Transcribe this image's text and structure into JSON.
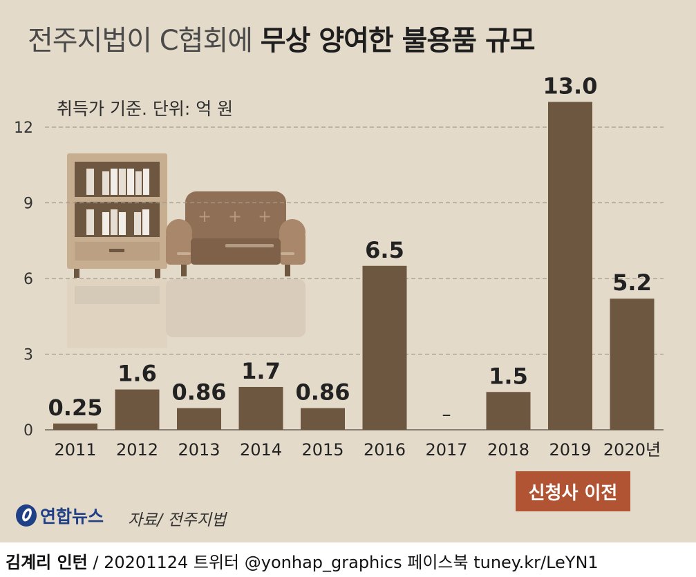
{
  "title_light": "전주지법이 C협회에",
  "title_bold": "무상 양여한 불용품 규모",
  "subtitle": "취득가 기준. 단위: 억 원",
  "badge": "신청사 이전",
  "logo_text": "연합뉴스",
  "source": "자료/ 전주지법",
  "footer": {
    "author": "김계리 인턴",
    "rest": " / 20201124  트위터 @yonhap_graphics  페이스북 tuney.kr/LeYN1"
  },
  "colors": {
    "background": "#e4dac9",
    "bar": "#6e5741",
    "badge": "#b05434",
    "gridline": "#a49a8c"
  },
  "chart_data": {
    "type": "bar",
    "categories": [
      "2011",
      "2012",
      "2013",
      "2014",
      "2015",
      "2016",
      "2017",
      "2018",
      "2019",
      "2020년"
    ],
    "values": [
      0.25,
      1.6,
      0.86,
      1.7,
      0.86,
      6.5,
      null,
      1.5,
      13.0,
      5.2
    ],
    "data_labels": [
      "0.25",
      "1.6",
      "0.86",
      "1.7",
      "0.86",
      "6.5",
      "–",
      "1.5",
      "13.0",
      "5.2"
    ],
    "yticks": [
      "0",
      "3",
      "6",
      "9",
      "12"
    ],
    "ylim": [
      0,
      13
    ],
    "grid": true,
    "xlabel": "",
    "ylabel": ""
  }
}
